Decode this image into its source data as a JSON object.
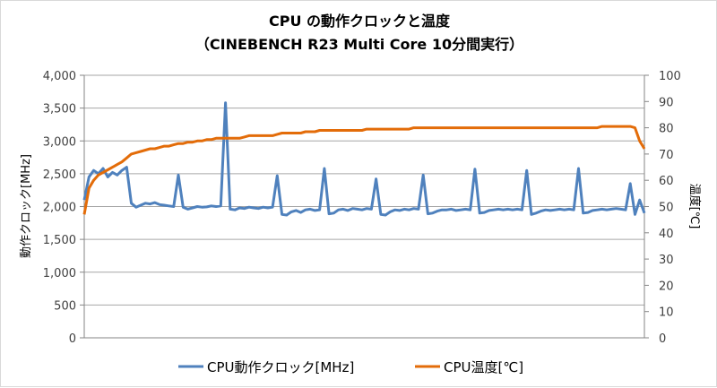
{
  "chart_data": {
    "type": "line",
    "title": "CPU の動作クロックと温度",
    "subtitle": "（CINEBENCH R23 Multi Core 10分間実行）",
    "ylabel": "動作クロック[MHz]",
    "y2label": "温度[℃]",
    "ylim": [
      0,
      4000
    ],
    "y2lim": [
      0,
      100
    ],
    "yticks": [
      "0",
      "500",
      "1,000",
      "1,500",
      "2,000",
      "2,500",
      "3,000",
      "3,500",
      "4,000"
    ],
    "y2ticks": [
      "0",
      "10",
      "20",
      "30",
      "40",
      "50",
      "60",
      "70",
      "80",
      "90",
      "100"
    ],
    "grid": true,
    "legend_position": "bottom",
    "series": [
      {
        "name": "CPU動作クロック[MHz]",
        "axis": "left",
        "color": "#4f81bd",
        "values": [
          2100,
          2450,
          2550,
          2500,
          2580,
          2450,
          2520,
          2480,
          2550,
          2600,
          2050,
          1990,
          2020,
          2050,
          2040,
          2060,
          2030,
          2020,
          2010,
          2000,
          2480,
          1990,
          1960,
          1980,
          2000,
          1990,
          1995,
          2010,
          2000,
          2010,
          3580,
          1960,
          1950,
          1980,
          1970,
          1990,
          1980,
          1970,
          1990,
          1980,
          1990,
          2470,
          1880,
          1870,
          1920,
          1940,
          1910,
          1950,
          1960,
          1940,
          1950,
          2580,
          1890,
          1900,
          1950,
          1960,
          1940,
          1970,
          1960,
          1950,
          1970,
          1960,
          2420,
          1880,
          1870,
          1920,
          1950,
          1940,
          1960,
          1950,
          1970,
          1960,
          2480,
          1890,
          1900,
          1930,
          1950,
          1950,
          1960,
          1940,
          1950,
          1960,
          1950,
          2570,
          1900,
          1910,
          1940,
          1950,
          1960,
          1950,
          1960,
          1950,
          1960,
          1950,
          2550,
          1880,
          1900,
          1930,
          1950,
          1940,
          1950,
          1960,
          1950,
          1960,
          1950,
          2580,
          1900,
          1910,
          1940,
          1950,
          1960,
          1950,
          1960,
          1970,
          1960,
          1950,
          2350,
          1880,
          2100,
          1900
        ]
      },
      {
        "name": "CPU温度[℃]",
        "axis": "right",
        "color": "#e36c09",
        "values": [
          47,
          57,
          60,
          62,
          63,
          64,
          65,
          66,
          67,
          68.5,
          70,
          70.5,
          71,
          71.5,
          72,
          72,
          72.5,
          73,
          73,
          73.5,
          74,
          74,
          74.5,
          74.5,
          75,
          75,
          75.5,
          75.5,
          76,
          76,
          76,
          76,
          76,
          76,
          76.5,
          77,
          77,
          77,
          77,
          77,
          77,
          77.5,
          78,
          78,
          78,
          78,
          78,
          78.5,
          78.5,
          78.5,
          79,
          79,
          79,
          79,
          79,
          79,
          79,
          79,
          79,
          79,
          79.5,
          79.5,
          79.5,
          79.5,
          79.5,
          79.5,
          79.5,
          79.5,
          79.5,
          79.5,
          80,
          80,
          80,
          80,
          80,
          80,
          80,
          80,
          80,
          80,
          80,
          80,
          80,
          80,
          80,
          80,
          80,
          80,
          80,
          80,
          80,
          80,
          80,
          80,
          80,
          80,
          80,
          80,
          80,
          80,
          80,
          80,
          80,
          80,
          80,
          80,
          80,
          80,
          80,
          80,
          80.5,
          80.5,
          80.5,
          80.5,
          80.5,
          80.5,
          80.5,
          80,
          75,
          72
        ]
      }
    ]
  }
}
